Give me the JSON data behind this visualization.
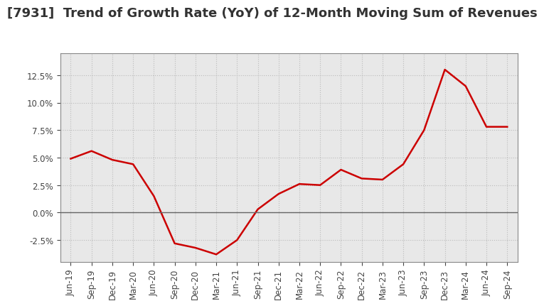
{
  "title": "[7931]  Trend of Growth Rate (YoY) of 12-Month Moving Sum of Revenues",
  "x_labels": [
    "Jun-19",
    "Sep-19",
    "Dec-19",
    "Mar-20",
    "Jun-20",
    "Sep-20",
    "Dec-20",
    "Mar-21",
    "Jun-21",
    "Sep-21",
    "Dec-21",
    "Mar-22",
    "Jun-22",
    "Sep-22",
    "Dec-22",
    "Mar-23",
    "Jun-23",
    "Sep-23",
    "Dec-23",
    "Mar-24",
    "Jun-24",
    "Sep-24"
  ],
  "y_values": [
    4.9,
    5.6,
    4.8,
    4.4,
    1.5,
    -2.8,
    -3.2,
    -3.8,
    -2.5,
    0.3,
    1.7,
    2.6,
    2.5,
    3.9,
    3.1,
    3.0,
    4.4,
    7.5,
    13.0,
    11.5,
    7.8,
    7.8
  ],
  "line_color": "#cc0000",
  "background_color": "#ffffff",
  "plot_bg_color": "#e8e8e8",
  "grid_color": "#bbbbbb",
  "zero_line_color": "#666666",
  "ylim": [
    -4.5,
    14.5
  ],
  "yticks": [
    -2.5,
    0.0,
    2.5,
    5.0,
    7.5,
    10.0,
    12.5
  ],
  "title_fontsize": 13,
  "tick_fontsize": 8.5,
  "line_width": 1.8,
  "spine_color": "#888888"
}
